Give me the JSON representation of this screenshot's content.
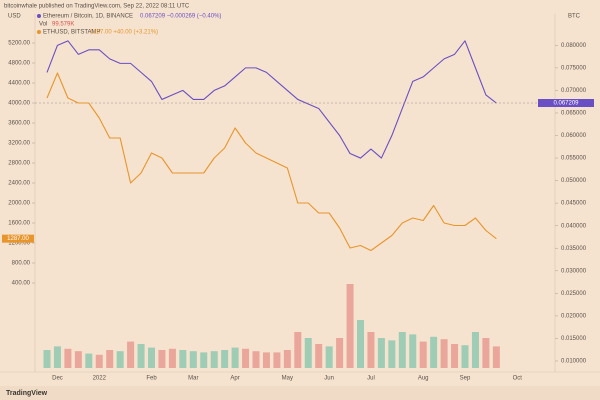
{
  "header": "bitcoinwhale published on TradingView.com, Sep 22, 2022 08:11 UTC",
  "footer": "TradingView",
  "chart_data": [
    {
      "type": "line",
      "y_label": "USD",
      "y2_label": "BTC",
      "categories": [
        null,
        "Dec",
        null,
        null,
        null,
        "2022",
        null,
        null,
        null,
        null,
        "Feb",
        null,
        null,
        null,
        "Mar",
        null,
        null,
        null,
        "Apr",
        null,
        null,
        null,
        null,
        "May",
        null,
        null,
        null,
        "Jun",
        null,
        null,
        null,
        "Jul",
        null,
        null,
        null,
        null,
        "Aug",
        null,
        null,
        null,
        "Sep",
        null,
        null,
        null,
        null,
        "Oct"
      ],
      "series": [
        {
          "name": "Ethereum / Bitcoin, 1D, BINANCE",
          "legend_stats": "0.067209 −0.000269 (−0.40%)",
          "price_tag": "0.067209",
          "color": "#6a4fc4",
          "axis": "y2",
          "values": [
            0.074,
            0.08,
            0.081,
            0.078,
            0.079,
            0.079,
            0.077,
            0.076,
            0.076,
            0.074,
            0.072,
            0.068,
            0.069,
            0.07,
            0.068,
            0.068,
            0.07,
            0.071,
            0.073,
            0.075,
            0.075,
            0.074,
            0.072,
            0.07,
            0.068,
            0.067,
            0.066,
            0.063,
            0.06,
            0.056,
            0.055,
            0.057,
            0.055,
            0.06,
            0.066,
            0.072,
            0.073,
            0.075,
            0.077,
            0.078,
            0.081,
            0.075,
            0.069,
            0.067209,
            null,
            null
          ]
        },
        {
          "name": "ETHUSD, BITSTAMP",
          "legend_stats": "1287.00 +40.00 (+3.21%)",
          "price_tag": "1287.00",
          "color": "#e8952c",
          "axis": "y",
          "values": [
            4100,
            4600,
            4100,
            4000,
            4000,
            3700,
            3300,
            3300,
            2400,
            2600,
            3000,
            2900,
            2600,
            2600,
            2600,
            2600,
            2900,
            3100,
            3500,
            3200,
            3000,
            2900,
            2800,
            2700,
            2000,
            2000,
            1800,
            1800,
            1500,
            1100,
            1150,
            1050,
            1200,
            1350,
            1600,
            1700,
            1650,
            1950,
            1600,
            1550,
            1550,
            1700,
            1450,
            1287,
            null,
            null
          ]
        }
      ],
      "ylim": [
        -1340,
        5460
      ],
      "yticks": [
        {
          "value": 5200,
          "label": "5200.00"
        },
        {
          "value": 4800,
          "label": "4800.00"
        },
        {
          "value": 4400,
          "label": "4400.00"
        },
        {
          "value": 4000,
          "label": "4000.00"
        },
        {
          "value": 3600,
          "label": "3600.00"
        },
        {
          "value": 3200,
          "label": "3200.00"
        },
        {
          "value": 2800,
          "label": "2800.00"
        },
        {
          "value": 2400,
          "label": "2400.00"
        },
        {
          "value": 2000,
          "label": "2000.00"
        },
        {
          "value": 1600,
          "label": "1600.00"
        },
        {
          "value": 1200,
          "label": "1200.00"
        },
        {
          "value": 800,
          "label": "800.00"
        },
        {
          "value": 400,
          "label": "400.00"
        }
      ],
      "y2lim": [
        0.008,
        0.0834
      ],
      "y2ticks": [
        {
          "value": 0.08,
          "label": "0.080000"
        },
        {
          "value": 0.075,
          "label": "0.075000"
        },
        {
          "value": 0.07,
          "label": "0.070000"
        },
        {
          "value": 0.065,
          "label": "0.065000"
        },
        {
          "value": 0.06,
          "label": "0.060000"
        },
        {
          "value": 0.055,
          "label": "0.055000"
        },
        {
          "value": 0.05,
          "label": "0.050000"
        },
        {
          "value": 0.045,
          "label": "0.045000"
        },
        {
          "value": 0.04,
          "label": "0.040000"
        },
        {
          "value": 0.035,
          "label": "0.035000"
        },
        {
          "value": 0.03,
          "label": "0.030000"
        },
        {
          "value": 0.025,
          "label": "0.025000"
        },
        {
          "value": 0.02,
          "label": "0.020000"
        },
        {
          "value": 0.015,
          "label": "0.015000"
        },
        {
          "value": 0.01,
          "label": "0.010000"
        }
      ]
    },
    {
      "type": "bar",
      "name": "Vol",
      "legend_stats": "99.579K",
      "up_color": "#8ec8b0",
      "down_color": "#e79b90",
      "categories": [
        null,
        "Dec",
        null,
        null,
        null,
        "2022",
        null,
        null,
        null,
        null,
        "Feb",
        null,
        null,
        null,
        "Mar",
        null,
        null,
        null,
        "Apr",
        null,
        null,
        null,
        null,
        "May",
        null,
        null,
        null,
        "Jun",
        null,
        null,
        null,
        "Jul",
        null,
        null,
        null,
        null,
        "Aug",
        null,
        null,
        null,
        "Sep",
        null,
        null,
        null,
        null,
        "Oct"
      ],
      "values": [
        150,
        180,
        160,
        140,
        120,
        110,
        150,
        140,
        220,
        200,
        170,
        150,
        160,
        150,
        140,
        130,
        140,
        150,
        170,
        160,
        140,
        130,
        130,
        150,
        300,
        250,
        200,
        180,
        250,
        700,
        400,
        300,
        250,
        230,
        300,
        280,
        220,
        260,
        240,
        200,
        190,
        300,
        250,
        180,
        null,
        null
      ],
      "ylim": [
        0,
        1000
      ]
    }
  ]
}
